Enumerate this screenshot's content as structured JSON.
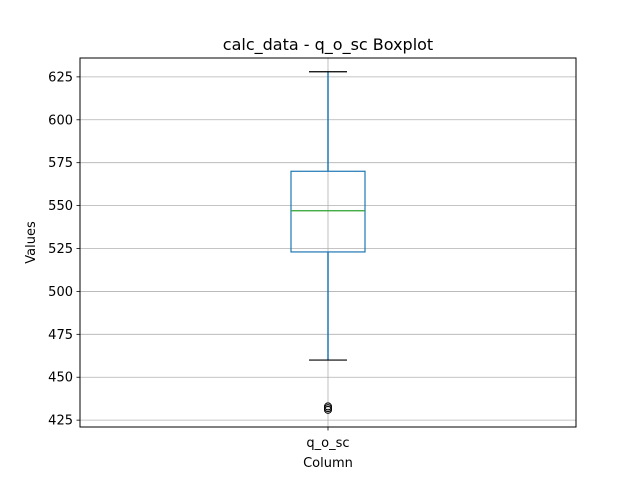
{
  "chart_data": {
    "type": "boxplot",
    "title": "calc_data - q_o_sc Boxplot",
    "xlabel": "Column",
    "ylabel": "Values",
    "categories": [
      "q_o_sc"
    ],
    "ylim": [
      421,
      636
    ],
    "yticks": [
      425,
      450,
      475,
      500,
      525,
      550,
      575,
      600,
      625
    ],
    "grid": true,
    "series": [
      {
        "values": {
          "whisker_low": 460,
          "q1": 523,
          "median": 547,
          "q3": 570,
          "whisker_high": 628,
          "outliers": [
            431,
            432,
            433
          ]
        }
      }
    ],
    "colors": {
      "box": "#1f77b4",
      "median": "#2ca02c",
      "whisker": "#1f77b4",
      "cap": "#000000",
      "outlier": "#000000",
      "grid": "#b0b0b0"
    }
  }
}
